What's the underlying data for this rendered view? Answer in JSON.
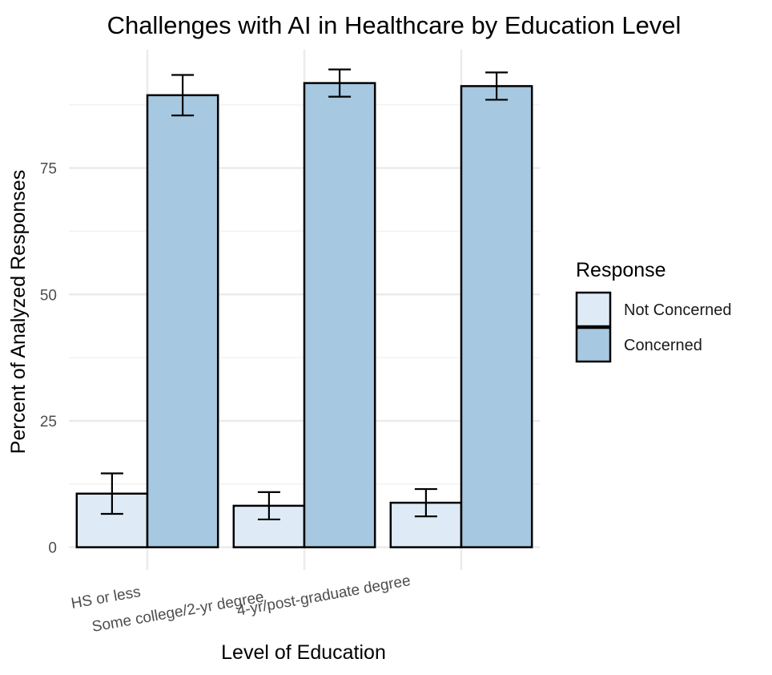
{
  "chart_data": {
    "type": "bar",
    "title": "Challenges with AI in Healthcare by Education Level",
    "xlabel": "Level of Education",
    "ylabel": "Percent of Analyzed Responses",
    "categories": [
      "HS or less",
      "Some college/2-yr degree",
      "4-yr/post-graduate degree"
    ],
    "series": [
      {
        "name": "Not Concerned",
        "color": "#deebf7",
        "values": [
          10.6,
          8.2,
          8.8
        ],
        "error_low": [
          6.6,
          5.5,
          6.1
        ],
        "error_high": [
          14.6,
          10.9,
          11.5
        ]
      },
      {
        "name": "Concerned",
        "color": "#a6c8e0",
        "values": [
          89.4,
          91.8,
          91.2
        ],
        "error_low": [
          85.4,
          89.1,
          88.5
        ],
        "error_high": [
          93.4,
          94.5,
          93.9
        ]
      }
    ],
    "yticks": [
      0,
      25,
      50,
      75
    ],
    "ylim": [
      -4.5,
      98.4
    ],
    "grid": true,
    "legend": {
      "title": "Response",
      "placement": "right"
    }
  }
}
